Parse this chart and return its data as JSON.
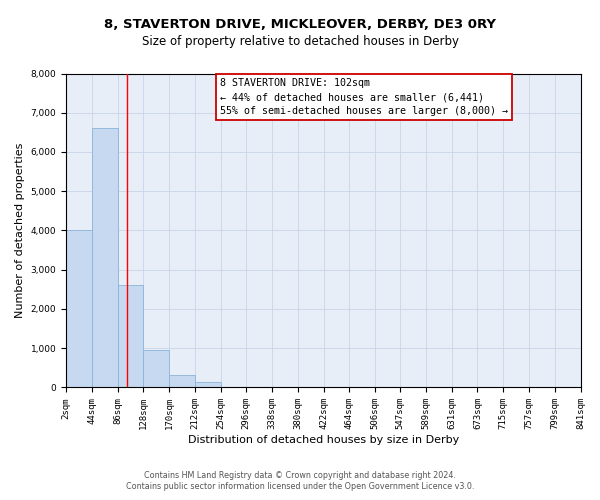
{
  "title": "8, STAVERTON DRIVE, MICKLEOVER, DERBY, DE3 0RY",
  "subtitle": "Size of property relative to detached houses in Derby",
  "xlabel": "Distribution of detached houses by size in Derby",
  "ylabel": "Number of detached properties",
  "bin_edges": [
    2,
    44,
    86,
    128,
    170,
    212,
    254,
    296,
    338,
    380,
    422,
    464,
    506,
    547,
    589,
    631,
    673,
    715,
    757,
    799,
    841
  ],
  "bar_heights": [
    4000,
    6600,
    2600,
    960,
    330,
    130,
    0,
    0,
    0,
    0,
    0,
    0,
    0,
    0,
    0,
    0,
    0,
    0,
    0,
    0
  ],
  "bar_color": "#c6d9f0",
  "bar_edgecolor": "#8ab4d8",
  "property_line_x": 102,
  "ylim": [
    0,
    8000
  ],
  "yticks": [
    0,
    1000,
    2000,
    3000,
    4000,
    5000,
    6000,
    7000,
    8000
  ],
  "annotation_box_text": "8 STAVERTON DRIVE: 102sqm\n← 44% of detached houses are smaller (6,441)\n55% of semi-detached houses are larger (8,000) →",
  "annotation_box_color": "#ffffff",
  "annotation_box_edgecolor": "#cc0000",
  "footer_line1": "Contains HM Land Registry data © Crown copyright and database right 2024.",
  "footer_line2": "Contains public sector information licensed under the Open Government Licence v3.0.",
  "bg_color": "#ffffff",
  "plot_bg_color": "#e8eef8",
  "grid_color": "#c8d4e8",
  "title_fontsize": 9.5,
  "subtitle_fontsize": 8.5,
  "tick_label_fontsize": 6.5,
  "axis_label_fontsize": 8,
  "annotation_fontsize": 7.2,
  "footer_fontsize": 5.8
}
